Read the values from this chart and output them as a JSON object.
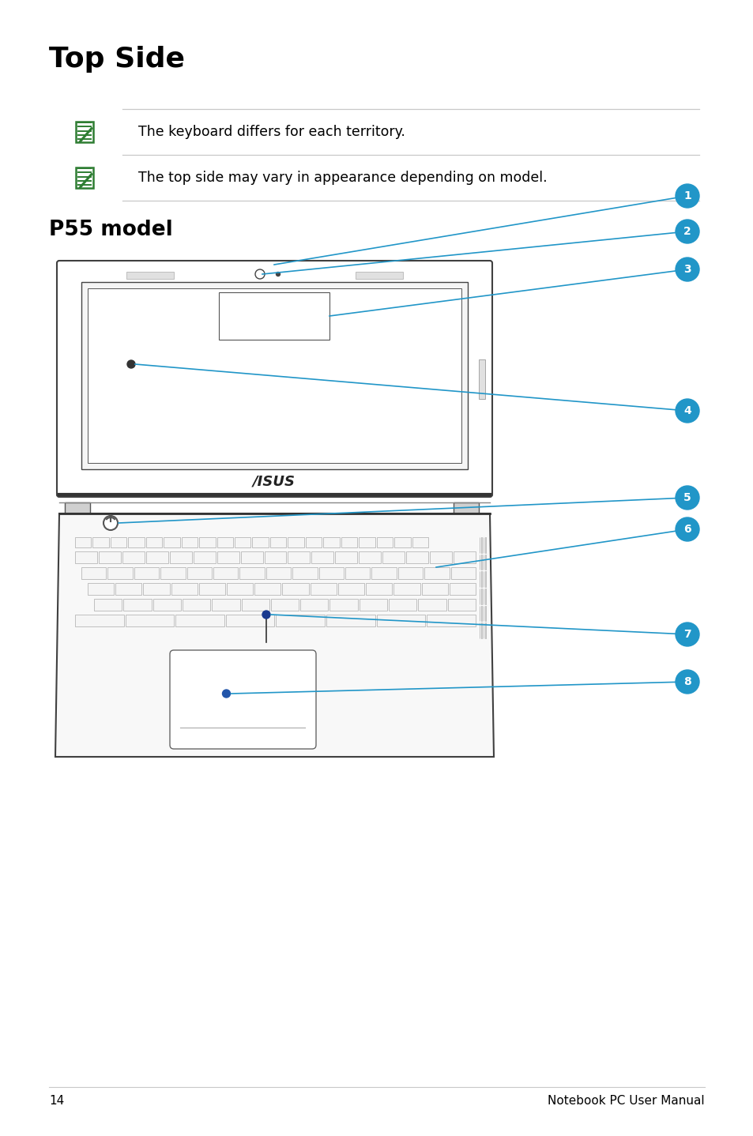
{
  "title": "Top Side",
  "subtitle": "P55 model",
  "note1": "The keyboard differs for each territory.",
  "note2": "The top side may vary in appearance depending on model.",
  "page_number": "14",
  "footer_text": "Notebook PC User Manual",
  "bg_color": "#ffffff",
  "text_color": "#000000",
  "line_color": "#c8c8c8",
  "blue_color": "#2196c8",
  "green_icon_color": "#2e7d32",
  "lid_edge": "#404040",
  "base_edge": "#404040",
  "key_face": "#f5f5f5",
  "key_edge": "#aaaaaa"
}
